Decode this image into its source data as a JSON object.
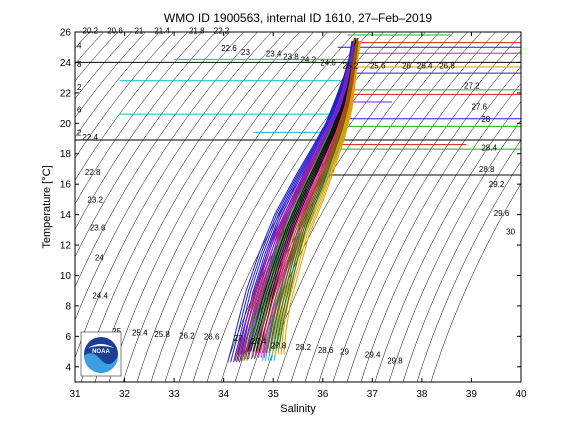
{
  "chart_data": {
    "type": "line",
    "title": "WMO ID 1900563, internal ID 1610, 27–Feb–2019",
    "xlabel": "Salinity",
    "ylabel": "Temperature [°C]",
    "xlim": [
      31,
      40
    ],
    "ylim": [
      3,
      26
    ],
    "x_ticks": [
      "31",
      "32",
      "33",
      "34",
      "35",
      "36",
      "37",
      "38",
      "39",
      "40"
    ],
    "y_ticks": [
      "4",
      "6",
      "8",
      "10",
      "12",
      "14",
      "16",
      "18",
      "20",
      "22",
      "24",
      "26"
    ],
    "grid": false,
    "sigma_contours": [
      {
        "label": "20.2",
        "s": 31.15,
        "t": 25.9
      },
      {
        "label": "20.6",
        "s": 31.65,
        "t": 25.9
      },
      {
        "label": "21",
        "s": 32.2,
        "t": 25.9
      },
      {
        "label": "21.4",
        "s": 32.6,
        "t": 25.9
      },
      {
        "label": "21.8",
        "s": 33.3,
        "t": 25.9
      },
      {
        "label": "22.2",
        "s": 33.8,
        "t": 25.9
      },
      {
        "label": "22.6",
        "s": 33.95,
        "t": 24.75
      },
      {
        "label": "23",
        "s": 34.35,
        "t": 24.5
      },
      {
        "label": "23.4",
        "s": 34.85,
        "t": 24.4
      },
      {
        "label": "23.8",
        "s": 35.2,
        "t": 24.2
      },
      {
        "label": "24.2",
        "s": 35.55,
        "t": 24.0
      },
      {
        "label": "24.6",
        "s": 35.95,
        "t": 23.8
      },
      {
        "label": "25.2",
        "s": 36.4,
        "t": 23.6
      },
      {
        "label": "25.6",
        "s": 36.95,
        "t": 23.6
      },
      {
        "label": "26",
        "s": 37.6,
        "t": 23.6
      },
      {
        "label": "26.4",
        "s": 37.9,
        "t": 23.6
      },
      {
        "label": "26.8",
        "s": 38.35,
        "t": 23.6
      },
      {
        "label": "27.2",
        "s": 38.85,
        "t": 22.3
      },
      {
        "label": "27.6",
        "s": 39.0,
        "t": 20.9
      },
      {
        "label": "28",
        "s": 39.2,
        "t": 20.1
      },
      {
        "label": "28.4",
        "s": 39.2,
        "t": 18.2
      },
      {
        "label": "28.8",
        "s": 39.15,
        "t": 16.8
      },
      {
        "label": "29.2",
        "s": 39.35,
        "t": 15.8
      },
      {
        "label": "29.6",
        "s": 39.45,
        "t": 13.9
      },
      {
        "label": "30",
        "s": 39.7,
        "t": 12.7
      },
      {
        "label": "22.4",
        "s": 31.15,
        "t": 18.9
      },
      {
        "label": "22.8",
        "s": 31.2,
        "t": 16.6
      },
      {
        "label": "23.2",
        "s": 31.25,
        "t": 14.8
      },
      {
        "label": "23.6",
        "s": 31.3,
        "t": 12.95
      },
      {
        "label": "24",
        "s": 31.4,
        "t": 11.0
      },
      {
        "label": "24.4",
        "s": 31.35,
        "t": 8.5
      },
      {
        "label": "25",
        "s": 31.75,
        "t": 6.15
      },
      {
        "label": "25.4",
        "s": 32.15,
        "t": 6.05
      },
      {
        "label": "25.8",
        "s": 32.6,
        "t": 5.95
      },
      {
        "label": "26.2",
        "s": 33.1,
        "t": 5.85
      },
      {
        "label": "26.6",
        "s": 33.6,
        "t": 5.8
      },
      {
        "label": "27",
        "s": 34.2,
        "t": 5.7
      },
      {
        "label": "27.4",
        "s": 34.55,
        "t": 5.5
      },
      {
        "label": "27.8",
        "s": 34.95,
        "t": 5.2
      },
      {
        "label": "28.2",
        "s": 35.45,
        "t": 5.1
      },
      {
        "label": "28.6",
        "s": 35.9,
        "t": 4.9
      },
      {
        "label": "29",
        "s": 36.35,
        "t": 4.8
      },
      {
        "label": "29.4",
        "s": 36.85,
        "t": 4.6
      },
      {
        "label": "29.8",
        "s": 37.3,
        "t": 4.2
      }
    ],
    "left_edge_labels": [
      {
        "label": "4",
        "t": 24.9
      },
      {
        "label": "8",
        "t": 23.7
      },
      {
        "label": "2",
        "t": 22.2
      },
      {
        "label": "6",
        "t": 20.7
      },
      {
        "label": "2",
        "t": 19.2
      }
    ],
    "horizontal_line_t": 18.9,
    "profiles_series": [
      {
        "color": "#1f1fd0",
        "points": [
          [
            34.2,
            4.3
          ],
          [
            34.3,
            5.6
          ],
          [
            34.4,
            7.0
          ],
          [
            34.55,
            9.0
          ],
          [
            34.8,
            11.5
          ],
          [
            35.1,
            14.0
          ],
          [
            35.5,
            16.5
          ],
          [
            35.85,
            18.5
          ],
          [
            36.1,
            20.0
          ],
          [
            36.3,
            21.7
          ],
          [
            36.45,
            23.1
          ],
          [
            36.55,
            24.3
          ],
          [
            36.6,
            25.4
          ]
        ]
      },
      {
        "color": "#d01f1f",
        "points": [
          [
            34.35,
            4.4
          ],
          [
            34.45,
            5.8
          ],
          [
            34.6,
            7.5
          ],
          [
            34.8,
            9.6
          ],
          [
            35.05,
            12.0
          ],
          [
            35.35,
            14.4
          ],
          [
            35.7,
            16.8
          ],
          [
            36.0,
            18.6
          ],
          [
            36.25,
            20.2
          ],
          [
            36.4,
            21.8
          ],
          [
            36.5,
            23.3
          ],
          [
            36.6,
            24.6
          ],
          [
            36.65,
            25.6
          ]
        ]
      },
      {
        "color": "#1f9e1f",
        "points": [
          [
            34.5,
            4.5
          ],
          [
            34.6,
            6.0
          ],
          [
            34.75,
            7.8
          ],
          [
            34.95,
            10.0
          ],
          [
            35.2,
            12.4
          ],
          [
            35.5,
            14.8
          ],
          [
            35.85,
            17.0
          ],
          [
            36.1,
            18.9
          ],
          [
            36.3,
            20.6
          ],
          [
            36.45,
            22.1
          ],
          [
            36.55,
            23.6
          ],
          [
            36.62,
            25.0
          ]
        ]
      },
      {
        "color": "#ff00ff",
        "points": [
          [
            34.7,
            4.6
          ],
          [
            34.8,
            6.2
          ],
          [
            34.95,
            8.0
          ],
          [
            35.15,
            10.3
          ],
          [
            35.4,
            12.8
          ],
          [
            35.7,
            15.2
          ],
          [
            36.0,
            17.4
          ],
          [
            36.25,
            19.2
          ],
          [
            36.45,
            21.0
          ],
          [
            36.55,
            22.6
          ],
          [
            36.6,
            24.0
          ],
          [
            36.7,
            25.3
          ]
        ]
      },
      {
        "color": "#00c0c0",
        "points": [
          [
            34.9,
            4.4
          ],
          [
            35.0,
            6.0
          ],
          [
            35.1,
            7.7
          ],
          [
            35.3,
            9.8
          ],
          [
            35.5,
            12.1
          ],
          [
            35.8,
            14.6
          ],
          [
            36.1,
            16.9
          ],
          [
            36.35,
            18.8
          ],
          [
            36.5,
            20.5
          ],
          [
            36.6,
            22.2
          ],
          [
            36.65,
            23.8
          ],
          [
            36.72,
            25.2
          ]
        ]
      },
      {
        "color": "#0a0a0a",
        "points": [
          [
            34.6,
            5.0
          ],
          [
            34.75,
            6.8
          ],
          [
            34.9,
            8.7
          ],
          [
            35.1,
            10.8
          ],
          [
            35.35,
            13.2
          ],
          [
            35.65,
            15.5
          ],
          [
            35.95,
            17.6
          ],
          [
            36.2,
            19.4
          ],
          [
            36.4,
            21.2
          ],
          [
            36.52,
            22.9
          ],
          [
            36.6,
            24.4
          ],
          [
            36.68,
            25.5
          ]
        ]
      },
      {
        "color": "#e0a000",
        "points": [
          [
            35.1,
            4.8
          ],
          [
            35.15,
            6.4
          ],
          [
            35.25,
            8.2
          ],
          [
            35.45,
            10.5
          ],
          [
            35.65,
            12.7
          ],
          [
            35.95,
            15.0
          ],
          [
            36.2,
            17.2
          ],
          [
            36.4,
            19.1
          ],
          [
            36.55,
            20.9
          ],
          [
            36.62,
            22.5
          ],
          [
            36.68,
            24.1
          ],
          [
            36.75,
            25.4
          ]
        ]
      },
      {
        "color": "#7a1fd0",
        "points": [
          [
            34.4,
            4.8
          ],
          [
            34.5,
            6.4
          ],
          [
            34.65,
            8.3
          ],
          [
            34.85,
            10.4
          ],
          [
            35.1,
            12.9
          ],
          [
            35.45,
            15.4
          ],
          [
            35.8,
            17.7
          ],
          [
            36.05,
            19.3
          ],
          [
            36.3,
            20.9
          ],
          [
            36.45,
            22.4
          ],
          [
            36.55,
            23.9
          ],
          [
            36.62,
            25.1
          ]
        ]
      },
      {
        "color": "#2a6e2a",
        "points": [
          [
            35.0,
            5.2
          ],
          [
            35.1,
            7.0
          ],
          [
            35.25,
            9.0
          ],
          [
            35.4,
            11.0
          ],
          [
            35.6,
            13.3
          ],
          [
            35.9,
            15.6
          ],
          [
            36.15,
            17.8
          ],
          [
            36.35,
            19.6
          ],
          [
            36.5,
            21.4
          ],
          [
            36.58,
            23.0
          ],
          [
            36.64,
            24.5
          ],
          [
            36.7,
            25.6
          ]
        ]
      },
      {
        "color": "#b04a1a",
        "points": [
          [
            34.8,
            4.9
          ],
          [
            34.9,
            6.6
          ],
          [
            35.05,
            8.5
          ],
          [
            35.25,
            10.6
          ],
          [
            35.5,
            13.0
          ],
          [
            35.8,
            15.3
          ],
          [
            36.1,
            17.5
          ],
          [
            36.3,
            19.3
          ],
          [
            36.48,
            21.1
          ],
          [
            36.58,
            22.7
          ],
          [
            36.65,
            24.2
          ],
          [
            36.7,
            25.4
          ]
        ]
      }
    ],
    "hline_series": [
      {
        "color": "#1fb01f",
        "t": 25.8,
        "s0": 36.5,
        "s1": 38.6
      },
      {
        "color": "#d01f1f",
        "t": 25.3,
        "s0": 36.7,
        "s1": 40.0
      },
      {
        "color": "#1f1fd0",
        "t": 25.0,
        "s0": 36.3,
        "s1": 40.0
      },
      {
        "color": "#ff00ff",
        "t": 24.6,
        "s0": 36.6,
        "s1": 40.0
      },
      {
        "color": "#00c0c0",
        "t": 24.2,
        "s0": 33.0,
        "s1": 36.6
      },
      {
        "color": "#0a0a0a",
        "t": 24.0,
        "s0": 31.0,
        "s1": 40.0
      },
      {
        "color": "#e0a000",
        "t": 23.7,
        "s0": 36.4,
        "s1": 40.0
      },
      {
        "color": "#1f1fd0",
        "t": 23.3,
        "s0": 36.5,
        "s1": 40.0
      },
      {
        "color": "#00c0c0",
        "t": 22.8,
        "s0": 31.9,
        "s1": 36.5
      },
      {
        "color": "#1fb01f",
        "t": 22.2,
        "s0": 36.5,
        "s1": 40.0
      },
      {
        "color": "#d01f1f",
        "t": 21.9,
        "s0": 36.4,
        "s1": 40.0
      },
      {
        "color": "#7a1fd0",
        "t": 21.4,
        "s0": 36.4,
        "s1": 37.4
      },
      {
        "color": "#00c0c0",
        "t": 20.6,
        "s0": 31.9,
        "s1": 36.3
      },
      {
        "color": "#1f1fd0",
        "t": 20.3,
        "s0": 36.3,
        "s1": 40.0
      },
      {
        "color": "#1fb01f",
        "t": 19.8,
        "s0": 36.3,
        "s1": 40.0
      },
      {
        "color": "#00c0c0",
        "t": 19.4,
        "s0": 34.6,
        "s1": 36.2
      },
      {
        "color": "#d01f1f",
        "t": 18.6,
        "s0": 36.0,
        "s1": 38.9
      },
      {
        "color": "#1fb01f",
        "t": 18.3,
        "s0": 36.1,
        "s1": 40.0
      },
      {
        "color": "#0a0a0a",
        "t": 16.6,
        "s0": 35.9,
        "s1": 40.0
      }
    ]
  },
  "logo": {
    "text": "NOAA"
  }
}
